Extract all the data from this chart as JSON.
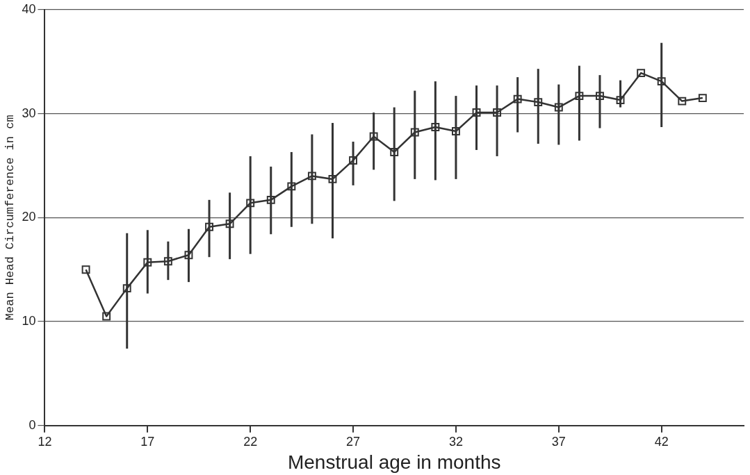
{
  "chart_data": {
    "type": "line",
    "xlabel": "Menstrual age in months",
    "ylabel": "Mean Head Circumference in cm",
    "xlim": [
      12,
      46
    ],
    "xticks": [
      12,
      17,
      22,
      27,
      32,
      37,
      42
    ],
    "ylim": [
      0,
      40
    ],
    "yticks": [
      0,
      10,
      20,
      30,
      40
    ],
    "grid": "y",
    "legend": false,
    "marker": "square",
    "line_style": "solid",
    "series": [
      {
        "color": "#333333",
        "x": [
          14,
          15,
          16,
          17,
          18,
          19,
          20,
          21,
          22,
          23,
          24,
          25,
          26,
          27,
          28,
          29,
          30,
          31,
          32,
          33,
          34,
          35,
          36,
          37,
          38,
          39,
          40,
          41,
          42,
          43,
          44
        ],
        "values": [
          15.0,
          10.5,
          13.2,
          15.7,
          15.8,
          16.4,
          19.1,
          19.4,
          21.4,
          21.7,
          23.0,
          24.0,
          23.7,
          25.5,
          27.8,
          26.3,
          28.2,
          28.7,
          28.3,
          30.1,
          30.1,
          31.4,
          31.1,
          30.6,
          31.7,
          31.7,
          31.3,
          33.9,
          33.1,
          31.2,
          31.5
        ],
        "errors": [
          null,
          null,
          [
            7.4,
            18.5
          ],
          [
            12.7,
            18.8
          ],
          [
            14.0,
            17.7
          ],
          [
            13.8,
            18.9
          ],
          [
            16.2,
            21.7
          ],
          [
            16.0,
            22.4
          ],
          [
            16.5,
            25.9
          ],
          [
            18.4,
            24.9
          ],
          [
            19.1,
            26.3
          ],
          [
            19.4,
            28.0
          ],
          [
            18.0,
            29.1
          ],
          [
            23.1,
            27.3
          ],
          [
            24.6,
            30.1
          ],
          [
            21.6,
            30.6
          ],
          [
            23.7,
            32.2
          ],
          [
            23.6,
            33.1
          ],
          [
            23.7,
            31.7
          ],
          [
            26.5,
            32.7
          ],
          [
            25.9,
            32.7
          ],
          [
            28.2,
            33.5
          ],
          [
            27.1,
            34.3
          ],
          [
            27.0,
            32.8
          ],
          [
            27.4,
            34.6
          ],
          [
            28.6,
            33.7
          ],
          [
            30.6,
            33.2
          ],
          null,
          [
            28.7,
            36.8
          ],
          null,
          null
        ]
      }
    ]
  }
}
